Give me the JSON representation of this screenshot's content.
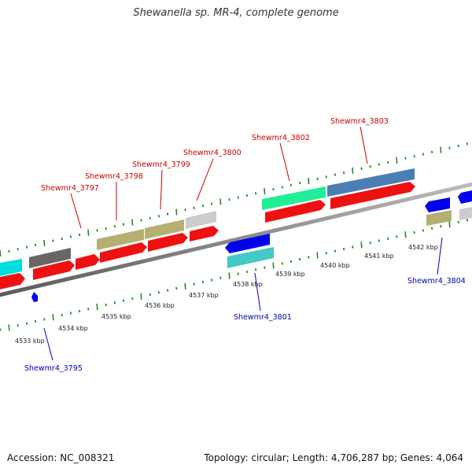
{
  "title": "Shewanella sp. MR-4, complete genome",
  "accession_text": "Accession: NC_008321",
  "topology_text": "Topology: circular; Length: 4,706,287 bp; Genes: 4,064",
  "colors": {
    "backbone": "#8a8a8a",
    "tick": "#228b22",
    "label_top": "#cc0000",
    "label_bottom": "#0000bb",
    "cds": "#ee1111",
    "cyan": "#00dddd",
    "darkgray": "#666666",
    "olive": "#b5b071",
    "lightgray": "#cccccc",
    "green": "#22ee99",
    "steelblue": "#4a7fb5",
    "blue": "#0000ee",
    "teal": "#44c8c8"
  },
  "tick_labels": [
    "4533 kbp",
    "4534 kbp",
    "4535 kbp",
    "4536 kbp",
    "4537 kbp",
    "4538 kbp",
    "4539 kbp",
    "4540 kbp",
    "4541 kbp",
    "4542 kbp"
  ],
  "gene_labels": [
    {
      "text": "Shewmr4_3797",
      "strand": "top"
    },
    {
      "text": "Shewmr4_3798",
      "strand": "top"
    },
    {
      "text": "Shewmr4_3799",
      "strand": "top"
    },
    {
      "text": "Shewmr4_3800",
      "strand": "top"
    },
    {
      "text": "Shewmr4_3802",
      "strand": "top"
    },
    {
      "text": "Shewmr4_3803",
      "strand": "top"
    },
    {
      "text": "Shewmr4_3795",
      "strand": "bottom"
    },
    {
      "text": "Shewmr4_3801",
      "strand": "bottom"
    },
    {
      "text": "Shewmr4_3804",
      "strand": "bottom"
    }
  ]
}
